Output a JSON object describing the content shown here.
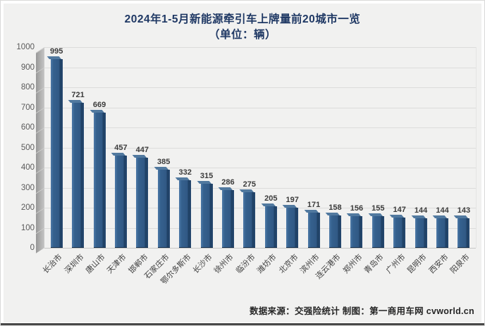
{
  "chart_data": {
    "type": "bar",
    "title": "2024年1-5月新能源牵引车上牌量前20城市一览",
    "subtitle": "（单位：辆）",
    "categories": [
      "长治市",
      "深圳市",
      "唐山市",
      "天津市",
      "邯郸市",
      "石家庄市",
      "鄂尔多斯市",
      "长沙市",
      "徐州市",
      "临汾市",
      "潍坊市",
      "北京市",
      "滨州市",
      "连云港市",
      "郑州市",
      "青岛市",
      "广州市",
      "昆明市",
      "西安市",
      "阳泉市"
    ],
    "values": [
      995,
      721,
      669,
      457,
      447,
      385,
      332,
      315,
      286,
      275,
      205,
      197,
      171,
      158,
      156,
      155,
      147,
      144,
      144,
      143
    ],
    "xlabel": "",
    "ylabel": "",
    "ylim": [
      0,
      1000
    ],
    "yticks": [
      0,
      100,
      200,
      300,
      400,
      500,
      600,
      700,
      800,
      900,
      1000
    ],
    "grid": true,
    "legend_position": "none",
    "style": "3d-column",
    "source_note": "数据来源：交强险统计 制图：第一商用车网 cvworld.cn"
  },
  "colors": {
    "title_text": "#1F3864",
    "panel_background": "#F1F1F0",
    "gridline": "#DCDCDB",
    "axis_text": "#595959",
    "data_label_text": "#3B3B3B",
    "bar_front": "#35618E",
    "bar_side": "#1E3F63",
    "bar_top": "#51799F",
    "wall": "#ABABAB",
    "source_text": "#262626"
  }
}
